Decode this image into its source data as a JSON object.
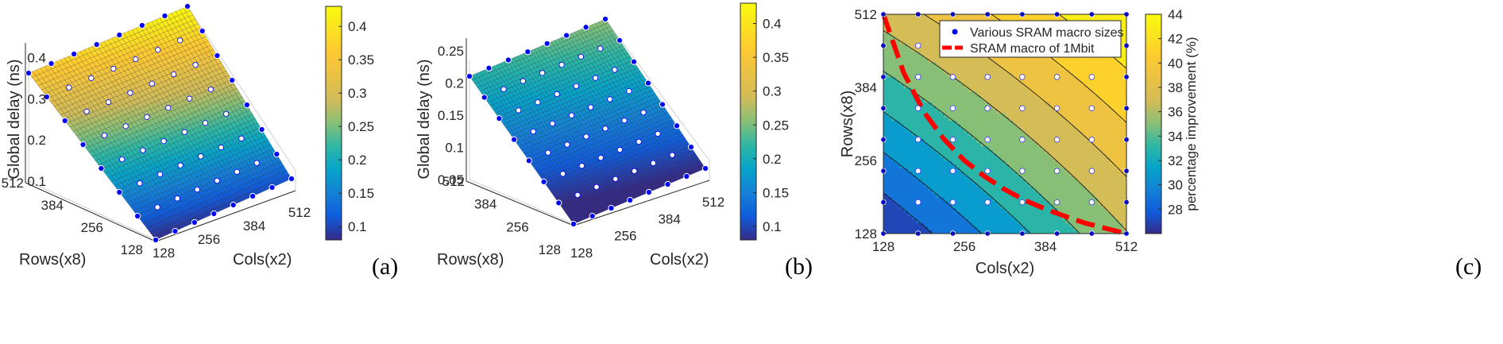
{
  "panels": {
    "a": {
      "letter": "(a)"
    },
    "b": {
      "letter": "(b)"
    },
    "c": {
      "letter": "(c)"
    }
  },
  "chart_data": [
    {
      "type": "surface",
      "panel": "(a)",
      "xlabel": "Cols(x2)",
      "ylabel": "Rows(x8)",
      "zlabel": "Global delay (ns)",
      "xticks": [
        "128",
        "256",
        "384",
        "512"
      ],
      "yticks": [
        "128",
        "256",
        "384",
        "512"
      ],
      "zticks": [
        "0.1",
        "0.2",
        "0.3",
        "0.4"
      ],
      "xlim": [
        128,
        512
      ],
      "ylim": [
        128,
        512
      ],
      "zlim": [
        0.1,
        0.42
      ],
      "corner_values": {
        "cols128_rows128": 0.08,
        "cols512_rows128": 0.11,
        "cols128_rows512": 0.36,
        "cols512_rows512": 0.43
      },
      "colorbar": {
        "ticks": [
          "0.1",
          "0.15",
          "0.2",
          "0.25",
          "0.3",
          "0.35",
          "0.4"
        ],
        "range": [
          0.08,
          0.43
        ],
        "colormap": "parula"
      },
      "marker_color": "#0000ff",
      "grid_n": 8
    },
    {
      "type": "surface",
      "panel": "(b)",
      "xlabel": "Cols(x2)",
      "ylabel": "Rows(x8)",
      "zlabel": "Global delay (ns)",
      "xticks": [
        "128",
        "256",
        "384",
        "512"
      ],
      "yticks": [
        "128",
        "256",
        "384",
        "512"
      ],
      "zticks": [
        "0.05",
        "0.1",
        "0.15",
        "0.2",
        "0.25"
      ],
      "xlim": [
        128,
        512
      ],
      "ylim": [
        128,
        512
      ],
      "zlim": [
        0.05,
        0.26
      ],
      "corner_values": {
        "cols128_rows128": 0.06,
        "cols512_rows128": 0.08,
        "cols128_rows512": 0.21,
        "cols512_rows512": 0.26
      },
      "colorbar": {
        "ticks": [
          "0.1",
          "0.15",
          "0.2",
          "0.25",
          "0.3",
          "0.35",
          "0.4"
        ],
        "range": [
          0.08,
          0.43
        ],
        "colormap": "parula"
      },
      "marker_color": "#0000ff",
      "grid_n": 8
    },
    {
      "type": "contour",
      "panel": "(c)",
      "xlabel": "Cols(x2)",
      "ylabel": "Rows(x8)",
      "xticks": [
        "128",
        "256",
        "384",
        "512"
      ],
      "yticks": [
        "128",
        "256",
        "384",
        "512"
      ],
      "xlim": [
        128,
        512
      ],
      "ylim": [
        128,
        512
      ],
      "levels": [
        26,
        28,
        30,
        32,
        34,
        36,
        38,
        40,
        42,
        44
      ],
      "zrange": [
        26,
        44
      ],
      "colorbar": {
        "label": "percentage improvement (%)",
        "ticks": [
          "28",
          "30",
          "32",
          "34",
          "36",
          "38",
          "40",
          "42",
          "44"
        ],
        "range": [
          26,
          44
        ],
        "colormap": "parula"
      },
      "legend": {
        "placement": "top-right",
        "entries": [
          {
            "label": "Various SRAM macro sizes",
            "marker": "dot",
            "color": "#0000ff"
          },
          {
            "label": "SRAM macro of 1Mbit",
            "marker": "dashed-line",
            "color": "#ff0000"
          }
        ]
      },
      "sample_grid_n": 8,
      "mbit_curve": [
        [
          128,
          512
        ],
        [
          160,
          410
        ],
        [
          192,
          341
        ],
        [
          224,
          293
        ],
        [
          256,
          256
        ],
        [
          288,
          228
        ],
        [
          320,
          205
        ],
        [
          352,
          186
        ],
        [
          384,
          171
        ],
        [
          416,
          158
        ],
        [
          448,
          146
        ],
        [
          480,
          137
        ],
        [
          512,
          128
        ]
      ]
    }
  ]
}
